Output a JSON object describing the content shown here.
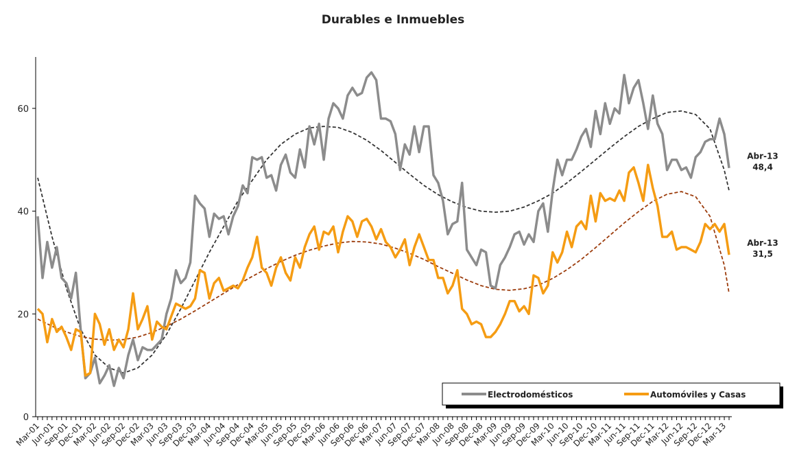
{
  "chart_data": {
    "type": "line",
    "title": "Durables e Inmuebles",
    "categories": [
      "Mar-01",
      null,
      null,
      "Jun-01",
      null,
      null,
      "Sep-01",
      null,
      null,
      "Dec-01",
      null,
      null,
      "Mar-02",
      null,
      null,
      "Jun-02",
      null,
      null,
      "Sep-02",
      null,
      null,
      "Dec-02",
      null,
      null,
      "Mar-03",
      null,
      null,
      "Jun-03",
      null,
      null,
      "Sep-03",
      null,
      null,
      "Dec-03",
      null,
      null,
      "Mar-04",
      null,
      null,
      "Jun-04",
      null,
      null,
      "Sep-04",
      null,
      null,
      "Dec-04",
      null,
      null,
      "Mar-05",
      null,
      null,
      "Jun-05",
      null,
      null,
      "Sep-05",
      null,
      null,
      "Dec-05",
      null,
      null,
      "Mar-06",
      null,
      null,
      "Jun-06",
      null,
      null,
      "Sep-06",
      null,
      null,
      "Dec-06",
      null,
      null,
      "Mar-07",
      null,
      null,
      "Jun-07",
      null,
      null,
      "Sep-07",
      null,
      null,
      "Dec-07",
      null,
      null,
      "Mar-08",
      null,
      null,
      "Jun-08",
      null,
      null,
      "Sep-08",
      null,
      null,
      "Dec-08",
      null,
      null,
      "Mar-09",
      null,
      null,
      "Jun-09",
      null,
      null,
      "Sep-09",
      null,
      null,
      "Dec-09",
      null,
      null,
      "Mar-10",
      null,
      null,
      "Jun-10",
      null,
      null,
      "Sep-10",
      null,
      null,
      "Dec-10",
      null,
      null,
      "Mar-11",
      null,
      null,
      "Jun-11",
      null,
      null,
      "Sep-11",
      null,
      null,
      "Dec-11",
      null,
      null,
      "Mar-12",
      null,
      null,
      "Jun-12",
      null,
      null,
      "Sep-12",
      null,
      null,
      "Dec-12",
      null,
      null,
      "Mar-13",
      null
    ],
    "series": [
      {
        "name": "Electrodomésticos",
        "color": "#8c8c8c",
        "values": [
          39,
          27,
          34,
          29,
          33,
          27,
          26,
          23,
          28,
          17,
          7.5,
          8.5,
          11.5,
          6.5,
          8,
          10,
          6,
          9.5,
          7.5,
          12,
          15,
          11,
          13.5,
          13,
          13,
          14,
          15,
          20,
          23,
          28.5,
          26,
          27,
          30,
          43,
          41.5,
          40.5,
          35,
          39.5,
          38.5,
          39,
          35.5,
          39,
          41,
          45,
          43.5,
          50.5,
          50,
          50.5,
          46.5,
          47,
          44,
          49,
          51,
          47.5,
          46.5,
          52,
          48.5,
          56.5,
          53,
          57,
          50,
          58,
          61,
          60,
          58,
          62.5,
          64,
          62.5,
          63,
          66,
          67,
          65.5,
          58,
          58,
          57.5,
          55,
          48,
          53,
          51,
          56.5,
          51.5,
          56.5,
          56.5,
          47,
          45.5,
          42,
          35.5,
          37.5,
          38,
          45.5,
          32.5,
          31,
          29.5,
          32.5,
          32,
          25.5,
          25,
          29.5,
          31,
          33,
          35.5,
          36,
          33.5,
          35.5,
          34,
          40,
          41.5,
          36,
          44,
          50,
          47,
          50,
          50,
          52,
          54.5,
          56,
          52.5,
          59.5,
          55,
          61,
          57,
          60,
          59,
          66.5,
          61,
          64,
          65.5,
          61,
          56,
          62.5,
          57,
          55,
          48,
          50,
          50,
          48,
          48.5,
          46.5,
          50.5,
          51.5,
          53.5,
          54,
          54,
          58,
          55,
          48.4
        ]
      },
      {
        "name": "Automóviles y Casas",
        "color": "#f59c13",
        "values": [
          21,
          20,
          14.5,
          19,
          16.5,
          17.5,
          15.5,
          13,
          17,
          16.5,
          8,
          8.5,
          20,
          18,
          14,
          17,
          13,
          15,
          13.5,
          17,
          24,
          17,
          19,
          21.5,
          15,
          18.5,
          17.5,
          17,
          19.5,
          22,
          21.5,
          21,
          21.5,
          23,
          28.5,
          28,
          23,
          26,
          27,
          24.5,
          25,
          25.5,
          25,
          26.5,
          29,
          31,
          35,
          29,
          28,
          25.5,
          29,
          31,
          28,
          26.5,
          31,
          29,
          33,
          35.5,
          37,
          32.5,
          36,
          35.5,
          37,
          32,
          36,
          39,
          38,
          35,
          38,
          38.5,
          37,
          34.5,
          36.5,
          34,
          33,
          31,
          32.5,
          34.5,
          29.5,
          33,
          35.5,
          33,
          30.5,
          30.5,
          27,
          27,
          24,
          25.5,
          28.5,
          21,
          20,
          18,
          18.5,
          18,
          15.5,
          15.5,
          16.5,
          18,
          20,
          22.5,
          22.5,
          20.5,
          21.5,
          20,
          27.5,
          27,
          24,
          25.5,
          32,
          30,
          32,
          36,
          33,
          37,
          38,
          36.5,
          43,
          38,
          43.5,
          42,
          42.5,
          42,
          44,
          42,
          47.5,
          48.5,
          45.5,
          42,
          49,
          44.5,
          41,
          35,
          35,
          36,
          32.5,
          33,
          33,
          32.5,
          32,
          34,
          37.5,
          36.5,
          37.5,
          36,
          37.5,
          31.5
        ]
      }
    ],
    "trends": [
      {
        "color": "#333333",
        "x": [
          0,
          3,
          6,
          9,
          12,
          15,
          18,
          21,
          24,
          27,
          30,
          33,
          36,
          39,
          42,
          45,
          48,
          51,
          54,
          57,
          60,
          63,
          66,
          69,
          72,
          75,
          78,
          81,
          84,
          87,
          90,
          93,
          96,
          99,
          102,
          105,
          108,
          111,
          114,
          117,
          120,
          123,
          126,
          129,
          132,
          135,
          138,
          141,
          144,
          145
        ],
        "values": [
          46.5,
          35,
          25,
          17,
          12,
          9.5,
          8.5,
          9.5,
          12,
          16,
          21,
          26.5,
          32,
          37,
          42,
          46,
          50,
          53,
          55,
          56.2,
          56.5,
          56.3,
          55.3,
          53.8,
          51.8,
          49.5,
          47.2,
          45,
          43.2,
          41.8,
          40.7,
          40,
          39.8,
          40,
          40.8,
          42,
          43.5,
          45.5,
          47.7,
          50,
          52.3,
          54.5,
          56.5,
          58,
          59.2,
          59.5,
          58.8,
          56,
          48,
          44
        ]
      },
      {
        "color": "#9c3c0c",
        "x": [
          0,
          3,
          6,
          9,
          12,
          15,
          18,
          21,
          24,
          27,
          30,
          33,
          36,
          39,
          42,
          45,
          48,
          51,
          54,
          57,
          60,
          63,
          66,
          69,
          72,
          75,
          78,
          81,
          84,
          87,
          90,
          93,
          96,
          99,
          102,
          105,
          108,
          111,
          114,
          117,
          120,
          123,
          126,
          129,
          132,
          135,
          138,
          141,
          144,
          145
        ],
        "values": [
          19,
          17.6,
          16.5,
          15.6,
          15.1,
          14.9,
          15,
          15.5,
          16.4,
          17.6,
          19,
          20.6,
          22.3,
          24,
          25.7,
          27.3,
          28.8,
          30.2,
          31.4,
          32.4,
          33.2,
          33.8,
          34.1,
          34,
          33.6,
          32.8,
          31.8,
          30.6,
          29.2,
          27.9,
          26.6,
          25.5,
          24.8,
          24.6,
          24.9,
          25.6,
          26.9,
          28.6,
          30.6,
          32.9,
          35.3,
          37.7,
          39.9,
          41.9,
          43.3,
          43.8,
          42.8,
          39,
          29.5,
          24
        ]
      }
    ],
    "annotations": [
      {
        "lines": [
          "Abr-13",
          "48,4"
        ],
        "value": 48.4
      },
      {
        "lines": [
          "Abr-13",
          "31,5"
        ],
        "value": 31.5
      }
    ],
    "ylim": [
      0,
      70
    ],
    "yticks": [
      0,
      20,
      40,
      60
    ],
    "legend": "lower right"
  }
}
